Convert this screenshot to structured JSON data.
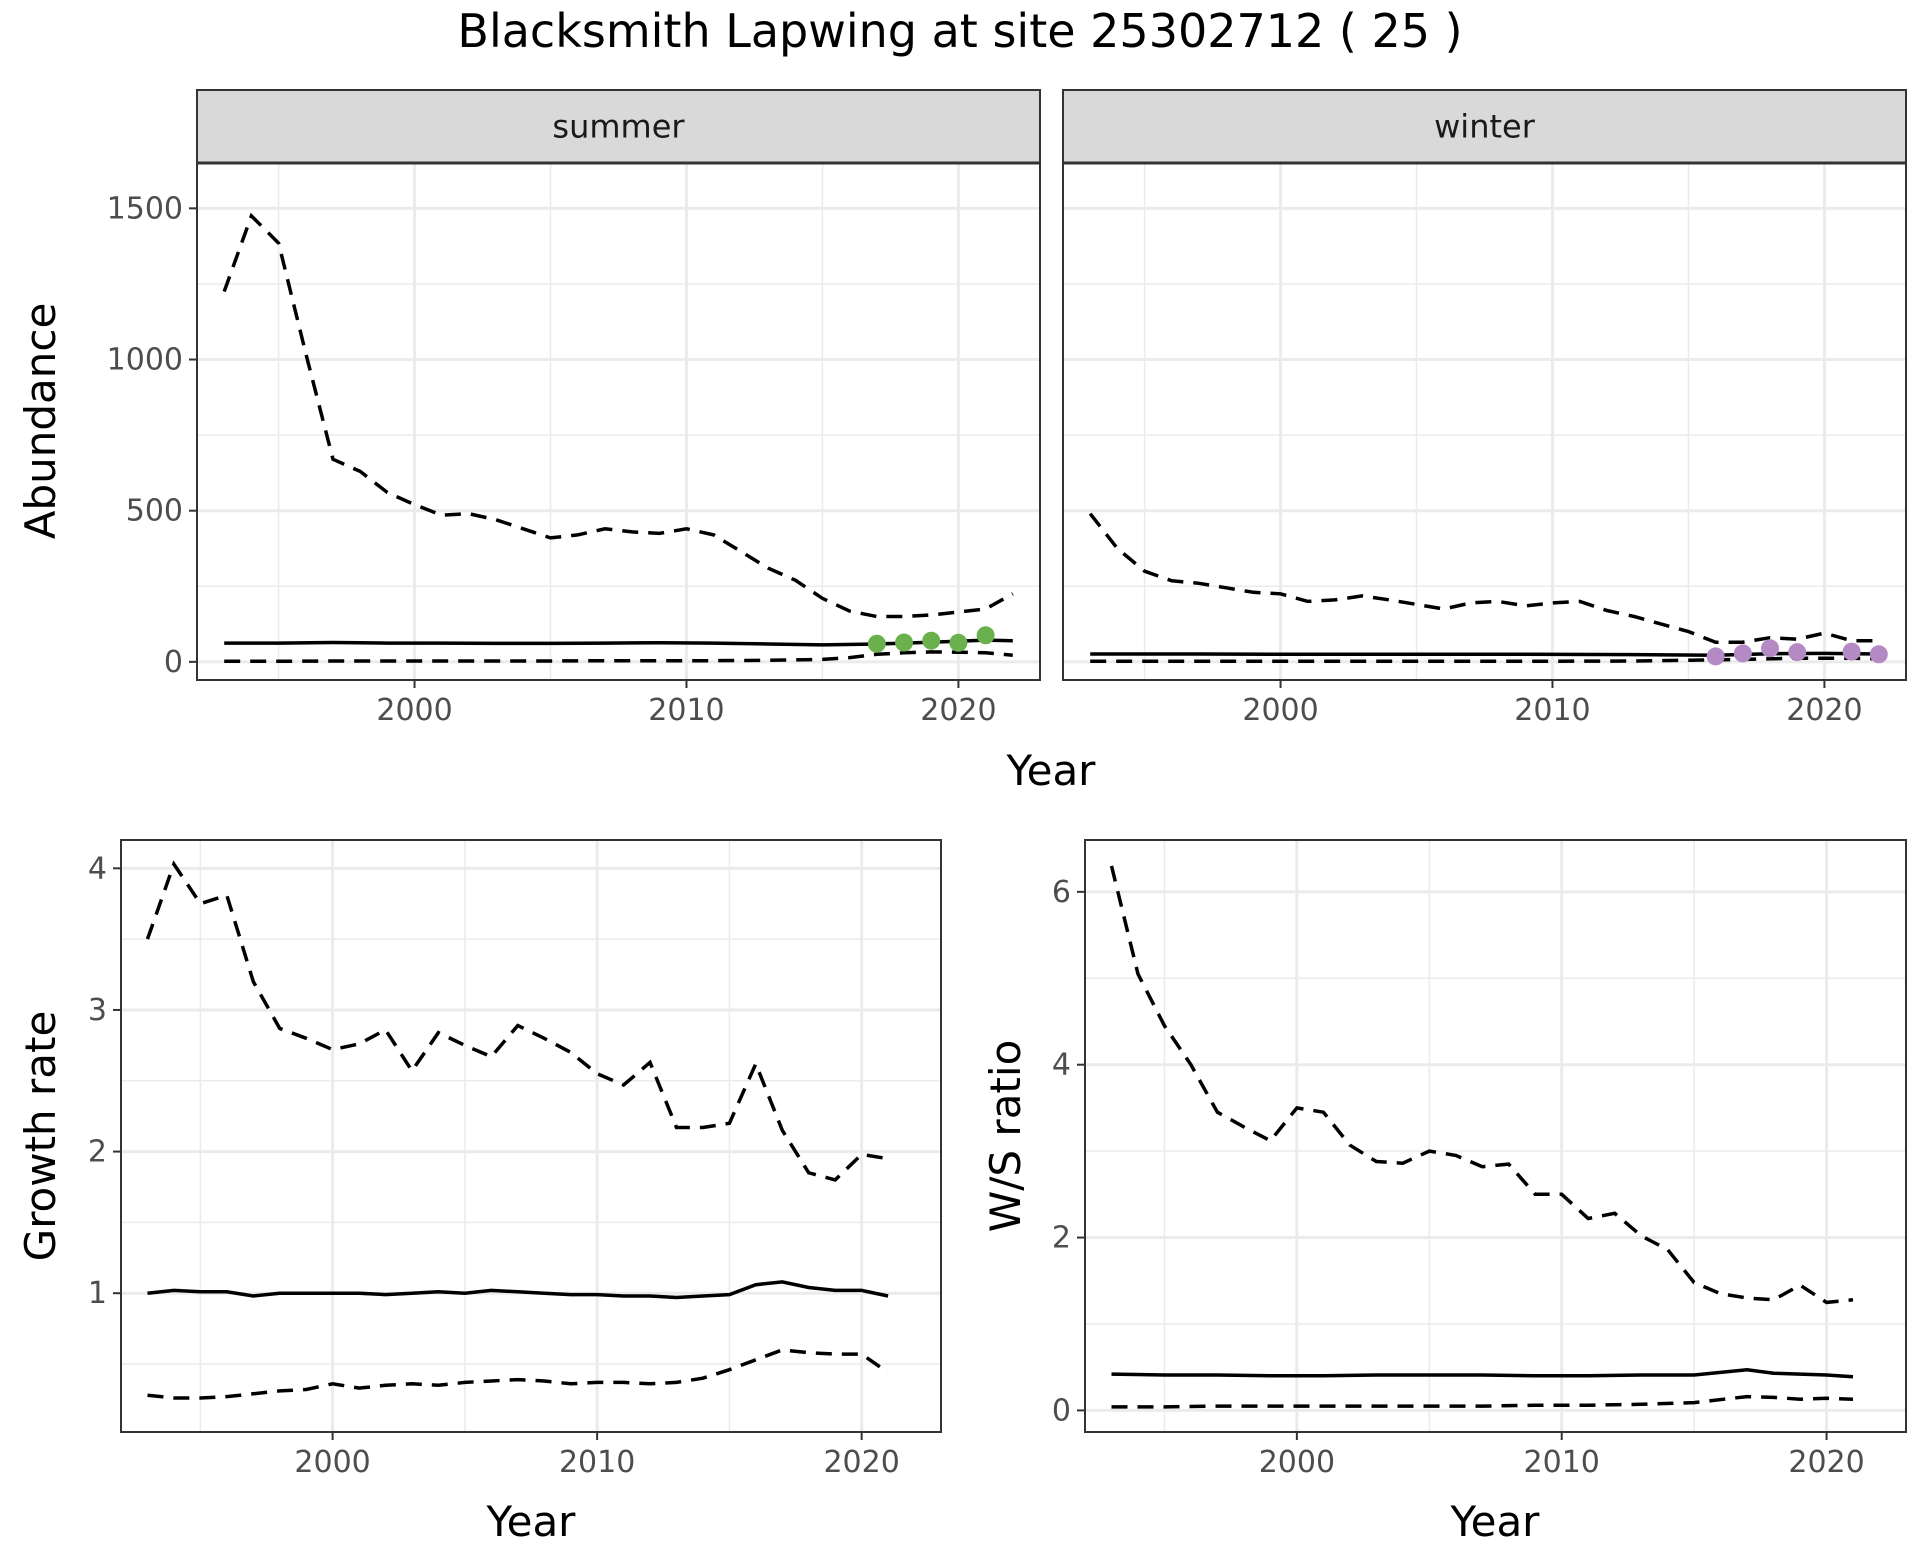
{
  "figure": {
    "title": "Blacksmith Lapwing at site 25302712 ( 25 )"
  },
  "chart_data": [
    {
      "type": "line",
      "panel": "summer",
      "strip_label": "summer",
      "xlabel": "Year",
      "ylabel": "Abundance",
      "xlim": [
        1992,
        2023
      ],
      "ylim": [
        -60,
        1650
      ],
      "xticks": [
        2000,
        2010,
        2020
      ],
      "yticks": [
        0,
        500,
        1000,
        1500
      ],
      "point_color": "#6ab04c",
      "series": [
        {
          "name": "estimate",
          "style": "solid",
          "x": [
            1993,
            1995,
            1997,
            1999,
            2001,
            2003,
            2005,
            2007,
            2009,
            2011,
            2013,
            2015,
            2017,
            2019,
            2021,
            2022
          ],
          "y": [
            62,
            62,
            64,
            62,
            62,
            61,
            61,
            62,
            63,
            62,
            59,
            56,
            59,
            65,
            72,
            70
          ]
        },
        {
          "name": "lower",
          "style": "dashed",
          "x": [
            1993,
            1995,
            1997,
            1999,
            2001,
            2003,
            2005,
            2007,
            2009,
            2011,
            2013,
            2015,
            2016,
            2017,
            2018,
            2019,
            2020,
            2021,
            2022
          ],
          "y": [
            2,
            2,
            3,
            3,
            3,
            3,
            3,
            4,
            4,
            4,
            5,
            8,
            14,
            25,
            30,
            33,
            32,
            30,
            22
          ]
        },
        {
          "name": "upper",
          "style": "dashed",
          "x": [
            1993,
            1994,
            1995,
            1996,
            1997,
            1998,
            1999,
            2000,
            2001,
            2002,
            2003,
            2004,
            2005,
            2006,
            2007,
            2008,
            2009,
            2010,
            2011,
            2012,
            2013,
            2014,
            2015,
            2016,
            2017,
            2018,
            2019,
            2020,
            2021,
            2022
          ],
          "y": [
            1225,
            1475,
            1385,
            1020,
            670,
            630,
            560,
            520,
            485,
            490,
            470,
            440,
            410,
            420,
            440,
            430,
            425,
            440,
            420,
            365,
            310,
            270,
            210,
            168,
            150,
            150,
            155,
            165,
            175,
            225
          ]
        }
      ],
      "points": {
        "x": [
          2017,
          2018,
          2019,
          2020,
          2021
        ],
        "y": [
          60,
          64,
          70,
          63,
          88
        ]
      }
    },
    {
      "type": "line",
      "panel": "winter",
      "strip_label": "winter",
      "xlabel": "Year",
      "ylabel": "Abundance",
      "xlim": [
        1992,
        2023
      ],
      "ylim": [
        -60,
        1650
      ],
      "xticks": [
        2000,
        2010,
        2020
      ],
      "yticks": [
        0,
        500,
        1000,
        1500
      ],
      "point_color": "#b48ac4",
      "series": [
        {
          "name": "estimate",
          "style": "solid",
          "x": [
            1993,
            1997,
            2001,
            2005,
            2009,
            2013,
            2016,
            2018,
            2020,
            2022
          ],
          "y": [
            26,
            26,
            25,
            25,
            25,
            24,
            22,
            27,
            28,
            26
          ]
        },
        {
          "name": "lower",
          "style": "dashed",
          "x": [
            1993,
            1997,
            2001,
            2005,
            2009,
            2013,
            2015,
            2017,
            2019,
            2021,
            2022
          ],
          "y": [
            2,
            2,
            2,
            2,
            2,
            3,
            5,
            8,
            12,
            12,
            10
          ]
        },
        {
          "name": "upper",
          "style": "dashed",
          "x": [
            1993,
            1994,
            1995,
            1996,
            1997,
            1998,
            1999,
            2000,
            2001,
            2002,
            2003,
            2004,
            2005,
            2006,
            2007,
            2008,
            2009,
            2010,
            2011,
            2012,
            2013,
            2014,
            2015,
            2016,
            2017,
            2018,
            2019,
            2020,
            2021,
            2022
          ],
          "y": [
            490,
            375,
            300,
            268,
            260,
            245,
            230,
            225,
            200,
            205,
            218,
            205,
            190,
            175,
            195,
            200,
            185,
            195,
            200,
            170,
            150,
            125,
            100,
            65,
            65,
            80,
            75,
            95,
            70,
            70
          ]
        }
      ],
      "points": {
        "x": [
          2016,
          2017,
          2018,
          2019,
          2021,
          2022
        ],
        "y": [
          18,
          28,
          45,
          32,
          34,
          25
        ]
      }
    },
    {
      "type": "line",
      "panel": "growth",
      "xlabel": "Year",
      "ylabel": "Growth rate",
      "xlim": [
        1992,
        2023
      ],
      "ylim": [
        0.02,
        4.2
      ],
      "xticks": [
        2000,
        2010,
        2020
      ],
      "yticks": [
        1,
        2,
        3,
        4
      ],
      "series": [
        {
          "name": "estimate",
          "style": "solid",
          "x": [
            1993,
            1994,
            1995,
            1996,
            1997,
            1998,
            1999,
            2000,
            2001,
            2002,
            2003,
            2004,
            2005,
            2006,
            2007,
            2008,
            2009,
            2010,
            2011,
            2012,
            2013,
            2014,
            2015,
            2016,
            2017,
            2018,
            2019,
            2020,
            2021
          ],
          "y": [
            1.0,
            1.02,
            1.01,
            1.01,
            0.98,
            1.0,
            1.0,
            1.0,
            1.0,
            0.99,
            1.0,
            1.01,
            1.0,
            1.02,
            1.01,
            1.0,
            0.99,
            0.99,
            0.98,
            0.98,
            0.97,
            0.98,
            0.99,
            1.06,
            1.08,
            1.04,
            1.02,
            1.02,
            0.98
          ]
        },
        {
          "name": "lower",
          "style": "dashed",
          "x": [
            1993,
            1994,
            1995,
            1996,
            1997,
            1998,
            1999,
            2000,
            2001,
            2002,
            2003,
            2004,
            2005,
            2006,
            2007,
            2008,
            2009,
            2010,
            2011,
            2012,
            2013,
            2014,
            2015,
            2016,
            2017,
            2018,
            2019,
            2020,
            2021
          ],
          "y": [
            0.28,
            0.26,
            0.26,
            0.27,
            0.29,
            0.31,
            0.32,
            0.36,
            0.33,
            0.35,
            0.36,
            0.35,
            0.37,
            0.38,
            0.39,
            0.38,
            0.36,
            0.37,
            0.37,
            0.36,
            0.37,
            0.4,
            0.46,
            0.53,
            0.6,
            0.58,
            0.57,
            0.57,
            0.44
          ]
        },
        {
          "name": "upper",
          "style": "dashed",
          "x": [
            1993,
            1994,
            1995,
            1996,
            1997,
            1998,
            1999,
            2000,
            2001,
            2002,
            2003,
            2004,
            2005,
            2006,
            2007,
            2008,
            2009,
            2010,
            2011,
            2012,
            2013,
            2014,
            2015,
            2016,
            2017,
            2018,
            2019,
            2020,
            2021
          ],
          "y": [
            3.5,
            4.03,
            3.75,
            3.81,
            3.2,
            2.87,
            2.8,
            2.72,
            2.76,
            2.86,
            2.57,
            2.84,
            2.75,
            2.67,
            2.89,
            2.8,
            2.7,
            2.55,
            2.47,
            2.63,
            2.17,
            2.17,
            2.2,
            2.62,
            2.15,
            1.85,
            1.8,
            1.98,
            1.95
          ]
        }
      ]
    },
    {
      "type": "line",
      "panel": "ws_ratio",
      "xlabel": "Year",
      "ylabel": "W/S ratio",
      "xlim": [
        1992,
        2023
      ],
      "ylim": [
        -0.25,
        6.6
      ],
      "xticks": [
        2000,
        2010,
        2020
      ],
      "yticks": [
        0,
        2,
        4,
        6
      ],
      "series": [
        {
          "name": "estimate",
          "style": "solid",
          "x": [
            1993,
            1995,
            1997,
            1999,
            2001,
            2003,
            2005,
            2007,
            2009,
            2011,
            2013,
            2015,
            2017,
            2018,
            2019,
            2020,
            2021
          ],
          "y": [
            0.42,
            0.41,
            0.41,
            0.4,
            0.4,
            0.41,
            0.41,
            0.41,
            0.4,
            0.4,
            0.41,
            0.41,
            0.47,
            0.43,
            0.42,
            0.41,
            0.39
          ]
        },
        {
          "name": "lower",
          "style": "dashed",
          "x": [
            1993,
            1995,
            1997,
            1999,
            2001,
            2003,
            2005,
            2007,
            2009,
            2011,
            2013,
            2015,
            2017,
            2018,
            2019,
            2020,
            2021
          ],
          "y": [
            0.04,
            0.04,
            0.05,
            0.05,
            0.05,
            0.05,
            0.05,
            0.05,
            0.06,
            0.06,
            0.07,
            0.09,
            0.16,
            0.15,
            0.13,
            0.14,
            0.13
          ]
        },
        {
          "name": "upper",
          "style": "dashed",
          "x": [
            1993,
            1994,
            1995,
            1996,
            1997,
            1998,
            1999,
            2000,
            2001,
            2002,
            2003,
            2004,
            2005,
            2006,
            2007,
            2008,
            2009,
            2010,
            2011,
            2012,
            2013,
            2014,
            2015,
            2016,
            2017,
            2018,
            2019,
            2020,
            2021
          ],
          "y": [
            6.3,
            5.05,
            4.45,
            4.0,
            3.45,
            3.28,
            3.12,
            3.5,
            3.45,
            3.07,
            2.88,
            2.86,
            3.0,
            2.95,
            2.82,
            2.85,
            2.5,
            2.5,
            2.22,
            2.28,
            2.02,
            1.86,
            1.48,
            1.35,
            1.3,
            1.28,
            1.45,
            1.25,
            1.28
          ]
        }
      ]
    }
  ]
}
